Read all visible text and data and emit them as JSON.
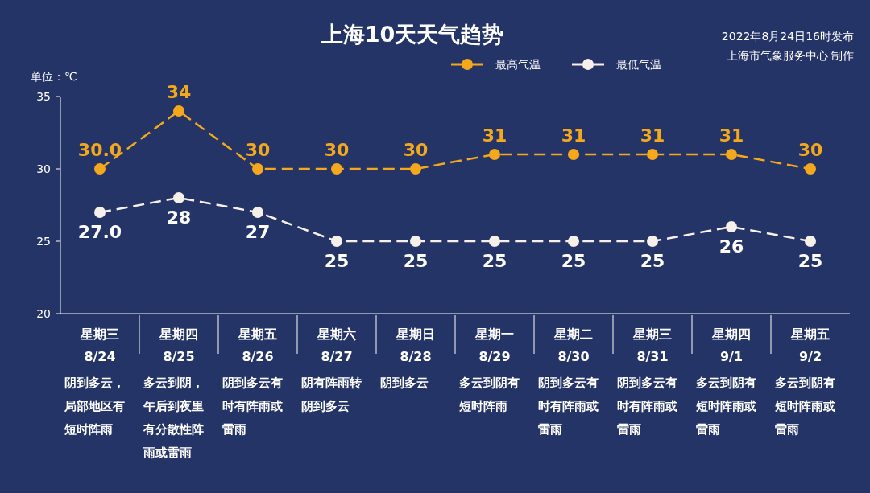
{
  "chart_data": {
    "type": "line",
    "title": "上海10天天气趋势",
    "ylabel": "单位：℃",
    "categories": [
      "星期三\n8/24",
      "星期四\n8/25",
      "星期五\n8/26",
      "星期六\n8/27",
      "星期日\n8/28",
      "星期一\n8/29",
      "星期二\n8/30",
      "星期三\n8/31",
      "星期四\n9/1",
      "星期五\n9/2"
    ],
    "series": [
      {
        "name": "最高气温",
        "color": "#f5a81c",
        "values": [
          30,
          34,
          30,
          30,
          30,
          31,
          31,
          31,
          31,
          30
        ],
        "value_labels": [
          "30.0",
          "34",
          "30",
          "30",
          "30",
          "31",
          "31",
          "31",
          "31",
          "30"
        ]
      },
      {
        "name": "最低气温",
        "color": "#f7efe9",
        "values": [
          27,
          28,
          27,
          25,
          25,
          25,
          25,
          25,
          26,
          25
        ],
        "value_labels": [
          "27.0",
          "28",
          "27",
          "25",
          "25",
          "25",
          "25",
          "25",
          "26",
          "25"
        ]
      }
    ],
    "ylim": [
      20,
      35
    ],
    "yticks": [
      20,
      25,
      30,
      35
    ],
    "grid": false,
    "legend": "top right",
    "marker": "circle",
    "line_style": "dashed",
    "annotations": [
      "2022年8月24日16时发布",
      "上海市气象服务中心 制作",
      "阴到多云，局部地区有短时阵雨",
      "多云到阴，午后到夜里有分散性阵雨或雷雨",
      "阴到多云有时有阵雨或雷雨",
      "阴有阵雨转阴到多云",
      "阴到多云",
      "多云到阴有短时阵雨",
      "阴到多云有时有阵雨或雷雨",
      "阴到多云有时有阵雨或雷雨",
      "多云到阴有短时阵雨或雷雨",
      "多云到阴有短时阵雨或雷雨"
    ]
  }
}
